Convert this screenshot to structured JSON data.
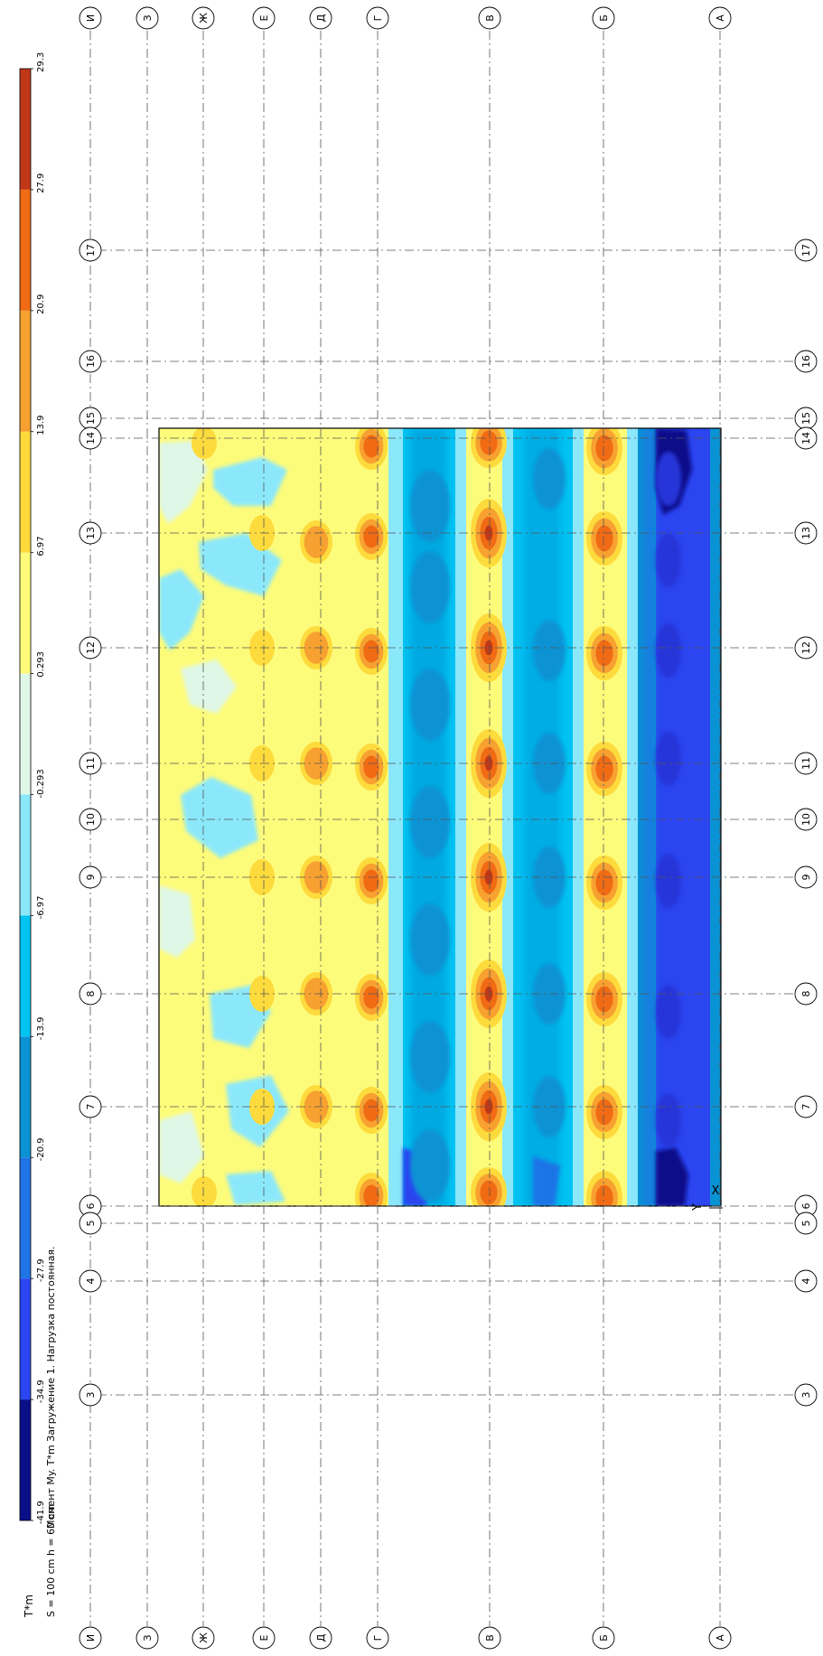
{
  "title": "Момент My. T*m Загружение 1. Нагрузка постоянная.",
  "plate_info": "S = 100 cm  h = 60 cm",
  "units": "T*m",
  "legend": {
    "values": [
      "-41.9",
      "-34.9",
      "-27.9",
      "-20.9",
      "-13.9",
      "-6.97",
      "-0.293",
      "0.293",
      "6.97",
      "13.9",
      "20.9",
      "27.9",
      "29.3"
    ],
    "colors": [
      "#0a0f8a",
      "#2b45f0",
      "#1f74e6",
      "#0a93d4",
      "#00c3f2",
      "#8be8fb",
      "#def7e6",
      "#fdfb7a",
      "#fddb3c",
      "#f7a131",
      "#f06b14",
      "#c03818"
    ]
  },
  "grid": {
    "letter_axes": [
      "И",
      "З",
      "Ж",
      "Е",
      "Д",
      "Г",
      "В",
      "Б",
      "А"
    ],
    "number_axes": [
      "17",
      "16",
      "15",
      "14",
      "13",
      "12",
      "11",
      "10",
      "9",
      "8",
      "7",
      "6",
      "5",
      "4",
      "3"
    ]
  },
  "origin_labels": {
    "x": "X",
    "y": "Y"
  }
}
